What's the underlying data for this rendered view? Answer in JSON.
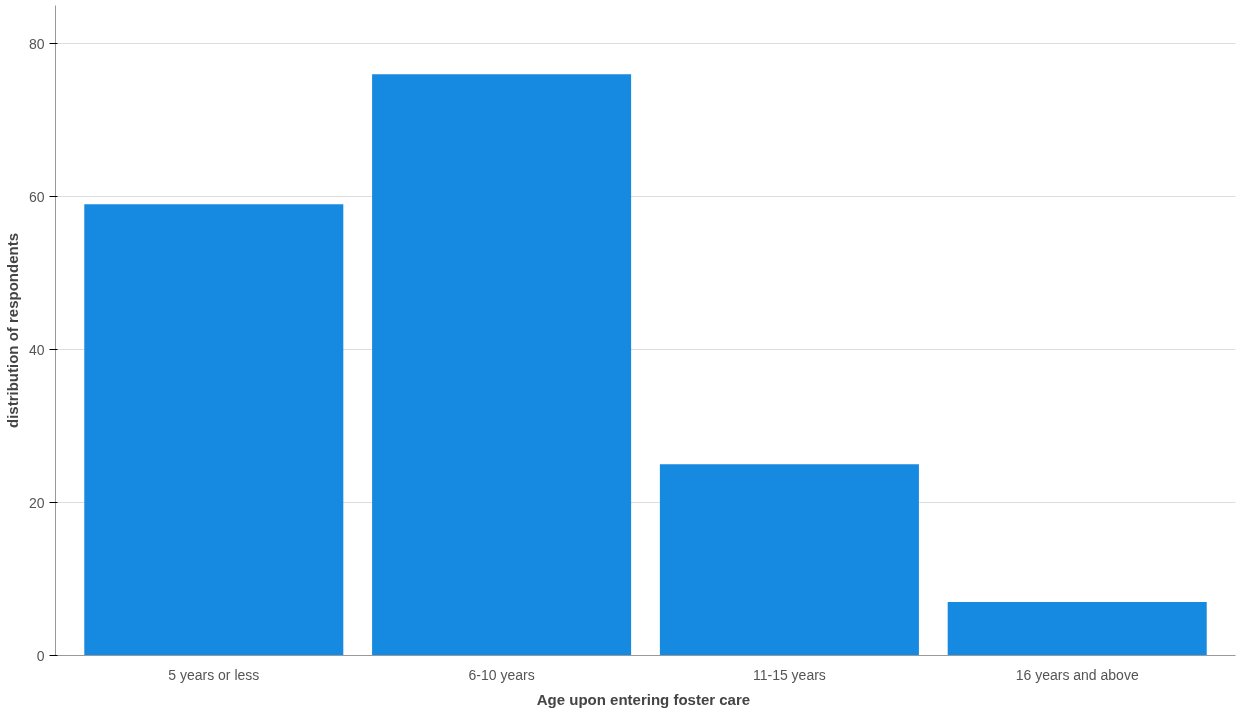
{
  "chart_data": {
    "type": "bar",
    "xlabel": "Age upon entering  foster care",
    "ylabel": "distribution of respondents",
    "categories": [
      "5 years or less",
      "6-10 years",
      "11-15 years",
      "16 years and above"
    ],
    "values": [
      59,
      76,
      25,
      7
    ],
    "color": "#1689e0",
    "ylim": [
      0,
      85
    ],
    "yticks": [
      0,
      20,
      40,
      60,
      80
    ],
    "grid": "y"
  }
}
